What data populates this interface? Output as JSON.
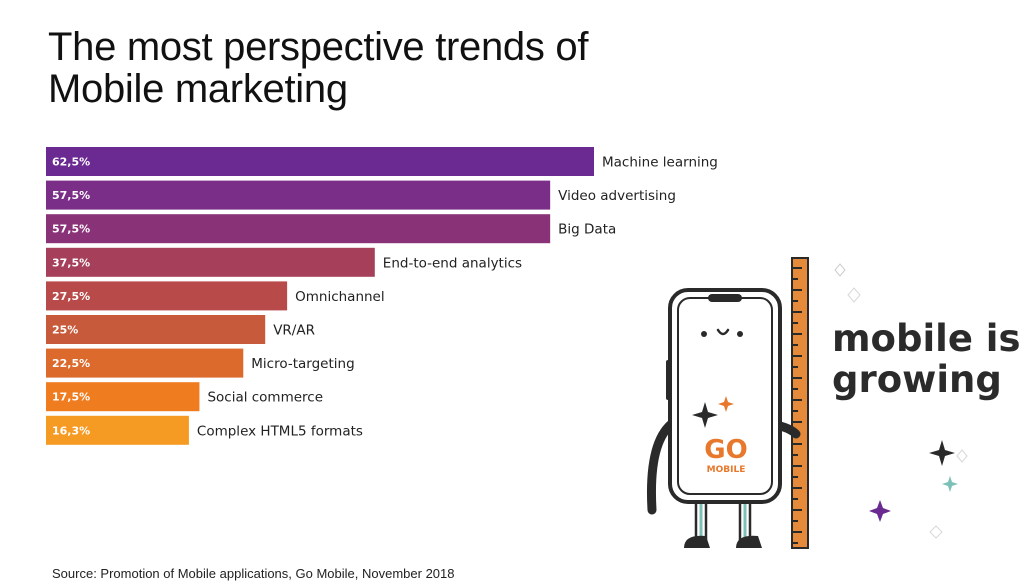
{
  "title": {
    "line1": "The most perspective trends of",
    "line2": "Mobile marketing"
  },
  "tagline": {
    "line1": "mobile is",
    "line2": "growing"
  },
  "logo": {
    "text_top": "GO",
    "text_bottom": "MOBILE"
  },
  "source": "Source: Promotion of Mobile applications, Go Mobile, November 2018",
  "colors": {
    "bar_gradient": [
      "#6a2a92",
      "#7a2e88",
      "#8a3278",
      "#a6405a",
      "#b84a4a",
      "#c85a3c",
      "#dc6a2c",
      "#f07c20",
      "#f59a22"
    ],
    "accent_orange": "#e8782c",
    "accent_purple": "#6a2a92",
    "accent_teal": "#7dc0b8",
    "ruler_orange": "#e58a3a"
  },
  "icons": [
    "phone-mascot-icon",
    "ruler-icon",
    "sparkle-icon",
    "go-mobile-logo"
  ],
  "chart_data": {
    "type": "bar",
    "orientation": "horizontal",
    "categories": [
      "Machine learning",
      "Video advertising",
      "Big Data",
      "End-to-end analytics",
      "Omnichannel",
      "VR/AR",
      "Micro-targeting",
      "Social commerce",
      "Complex HTML5 formats"
    ],
    "values": [
      62.5,
      57.5,
      57.5,
      37.5,
      27.5,
      25,
      22.5,
      17.5,
      16.3
    ],
    "value_labels": [
      "62,5%",
      "57,5%",
      "57,5%",
      "37,5%",
      "27,5%",
      "25%",
      "22,5%",
      "17,5%",
      "16,3%"
    ],
    "unit": "%",
    "title": "The most perspective trends of Mobile marketing",
    "xlabel": "",
    "ylabel": "",
    "xlim": [
      0,
      62.5
    ],
    "grid": false,
    "legend": "none"
  }
}
